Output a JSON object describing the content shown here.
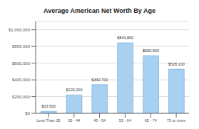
{
  "chart_data": {
    "type": "bar",
    "title": "Average American Net Worth By Age",
    "categories": [
      "Less Than 35",
      "35 - 44",
      "45 - 54",
      "55 - 64",
      "65 - 74",
      "75 or more"
    ],
    "values": [
      23500,
      220200,
      342700,
      843800,
      690900,
      528100
    ],
    "value_labels": [
      "$23,500",
      "$220,200",
      "$342,700",
      "$843,800",
      "$690,900",
      "$528,100"
    ],
    "data_labels": true,
    "color": "#a8d0f0",
    "ylim": [
      0,
      1100000
    ],
    "yticks": [
      {
        "value": 0,
        "label": "$0"
      },
      {
        "value": 200000,
        "label": "$200,000"
      },
      {
        "value": 400000,
        "label": "$400,000"
      },
      {
        "value": 600000,
        "label": "$600,000"
      },
      {
        "value": 800000,
        "label": "$800,000"
      },
      {
        "value": 1000000,
        "label": "$1,000,000"
      }
    ],
    "grid": true
  }
}
